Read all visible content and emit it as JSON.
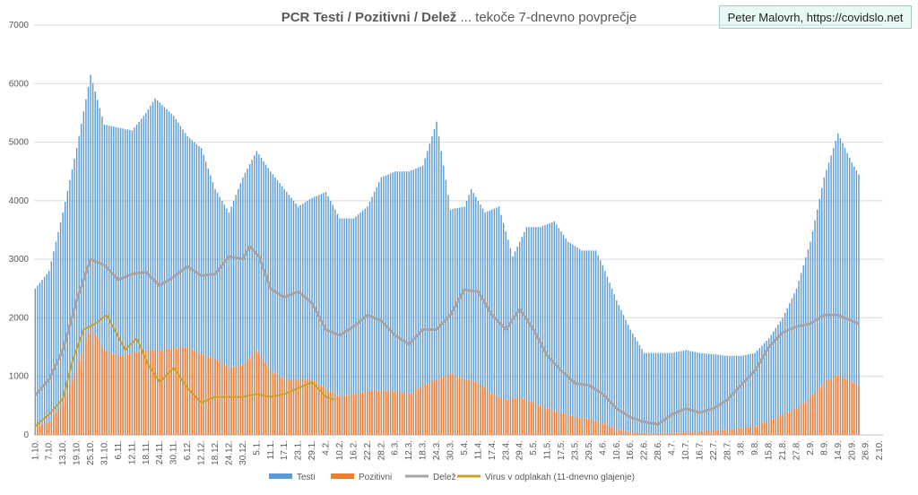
{
  "credit": "Peter Malovrh, https://covidslo.net",
  "colors": {
    "testi": "#5b9bd5",
    "pozitivni": "#ed7d31",
    "delez": "#a5a5a5",
    "virus": "#c9a227",
    "grid": "#d9d9d9",
    "axis_text": "#595959"
  },
  "chart_data": {
    "type": "bar",
    "title_bold": "PCR Testi / Pozitivni / Delež",
    "title_rest": " ... tekoče 7-dnevno povprečje",
    "ylim": [
      0,
      7000
    ],
    "yticks": [
      "0",
      "1000",
      "2000",
      "3000",
      "4000",
      "5000",
      "6000",
      "7000"
    ],
    "legend_position": "bottom",
    "x_start": "2020-10-01",
    "x_end": "2021-10-03",
    "xtick_labels": [
      "1.10.",
      "7.10.",
      "13.10.",
      "19.10.",
      "25.10.",
      "31.10.",
      "6.11.",
      "12.11.",
      "18.11.",
      "24.11.",
      "30.11.",
      "6.12.",
      "12.12.",
      "18.12.",
      "24.12.",
      "30.12.",
      "5.1.",
      "11.1.",
      "17.1.",
      "23.1.",
      "29.1.",
      "4.2.",
      "10.2.",
      "16.2.",
      "22.2.",
      "28.2.",
      "6.3.",
      "12.3.",
      "18.3.",
      "24.3.",
      "30.3.",
      "5.4.",
      "11.4.",
      "17.4.",
      "23.4.",
      "29.4.",
      "5.5.",
      "11.5.",
      "17.5.",
      "23.5.",
      "29.5.",
      "4.6.",
      "10.6.",
      "16.6.",
      "22.6.",
      "28.6.",
      "4.7.",
      "10.7.",
      "16.7.",
      "22.7.",
      "28.7.",
      "3.8.",
      "9.8.",
      "15.8.",
      "21.8.",
      "27.8.",
      "2.9.",
      "8.9.",
      "14.9.",
      "20.9.",
      "26.9.",
      "2.10."
    ],
    "series": [
      {
        "name": "Testi",
        "kind": "bar",
        "points": [
          [
            "2020-10-01",
            2500
          ],
          [
            "2020-10-07",
            2800
          ],
          [
            "2020-10-13",
            3800
          ],
          [
            "2020-10-19",
            4900
          ],
          [
            "2020-10-25",
            6150
          ],
          [
            "2020-10-31",
            5300
          ],
          [
            "2020-11-06",
            5250
          ],
          [
            "2020-11-12",
            5200
          ],
          [
            "2020-11-18",
            5500
          ],
          [
            "2020-11-22",
            5750
          ],
          [
            "2020-11-30",
            5450
          ],
          [
            "2020-12-06",
            5100
          ],
          [
            "2020-12-12",
            4900
          ],
          [
            "2020-12-18",
            4200
          ],
          [
            "2020-12-24",
            3800
          ],
          [
            "2020-12-30",
            4400
          ],
          [
            "2021-01-05",
            4850
          ],
          [
            "2021-01-11",
            4500
          ],
          [
            "2021-01-17",
            4200
          ],
          [
            "2021-01-23",
            3900
          ],
          [
            "2021-01-29",
            4050
          ],
          [
            "2021-02-04",
            4150
          ],
          [
            "2021-02-10",
            3700
          ],
          [
            "2021-02-16",
            3700
          ],
          [
            "2021-02-22",
            3900
          ],
          [
            "2021-02-28",
            4400
          ],
          [
            "2021-03-06",
            4500
          ],
          [
            "2021-03-12",
            4500
          ],
          [
            "2021-03-18",
            4600
          ],
          [
            "2021-03-24",
            5350
          ],
          [
            "2021-03-30",
            3850
          ],
          [
            "2021-04-05",
            3900
          ],
          [
            "2021-04-08",
            4200
          ],
          [
            "2021-04-14",
            3800
          ],
          [
            "2021-04-20",
            3900
          ],
          [
            "2021-04-26",
            3050
          ],
          [
            "2021-05-02",
            3550
          ],
          [
            "2021-05-08",
            3550
          ],
          [
            "2021-05-14",
            3650
          ],
          [
            "2021-05-20",
            3300
          ],
          [
            "2021-05-26",
            3150
          ],
          [
            "2021-06-01",
            3150
          ],
          [
            "2021-06-04",
            2900
          ],
          [
            "2021-06-10",
            2300
          ],
          [
            "2021-06-16",
            1800
          ],
          [
            "2021-06-22",
            1400
          ],
          [
            "2021-06-28",
            1400
          ],
          [
            "2021-07-04",
            1400
          ],
          [
            "2021-07-10",
            1450
          ],
          [
            "2021-07-16",
            1400
          ],
          [
            "2021-07-22",
            1380
          ],
          [
            "2021-07-28",
            1350
          ],
          [
            "2021-08-03",
            1350
          ],
          [
            "2021-08-09",
            1400
          ],
          [
            "2021-08-15",
            1650
          ],
          [
            "2021-08-21",
            2000
          ],
          [
            "2021-08-27",
            2500
          ],
          [
            "2021-09-02",
            3300
          ],
          [
            "2021-09-08",
            4400
          ],
          [
            "2021-09-14",
            5150
          ],
          [
            "2021-09-20",
            4650
          ],
          [
            "2021-09-23",
            4450
          ]
        ]
      },
      {
        "name": "Pozitivni",
        "kind": "bar",
        "points": [
          [
            "2020-10-01",
            140
          ],
          [
            "2020-10-07",
            230
          ],
          [
            "2020-10-13",
            560
          ],
          [
            "2020-10-19",
            1150
          ],
          [
            "2020-10-25",
            1850
          ],
          [
            "2020-10-31",
            1450
          ],
          [
            "2020-11-06",
            1350
          ],
          [
            "2020-11-12",
            1400
          ],
          [
            "2020-11-18",
            1450
          ],
          [
            "2020-11-24",
            1450
          ],
          [
            "2020-11-30",
            1480
          ],
          [
            "2020-12-06",
            1500
          ],
          [
            "2020-12-12",
            1380
          ],
          [
            "2020-12-18",
            1300
          ],
          [
            "2020-12-24",
            1150
          ],
          [
            "2020-12-30",
            1200
          ],
          [
            "2021-01-05",
            1450
          ],
          [
            "2021-01-11",
            1100
          ],
          [
            "2021-01-17",
            950
          ],
          [
            "2021-01-23",
            950
          ],
          [
            "2021-01-29",
            950
          ],
          [
            "2021-02-04",
            800
          ],
          [
            "2021-02-10",
            650
          ],
          [
            "2021-02-16",
            700
          ],
          [
            "2021-02-22",
            750
          ],
          [
            "2021-02-28",
            760
          ],
          [
            "2021-03-06",
            750
          ],
          [
            "2021-03-12",
            700
          ],
          [
            "2021-03-18",
            850
          ],
          [
            "2021-03-24",
            950
          ],
          [
            "2021-03-30",
            1050
          ],
          [
            "2021-04-05",
            950
          ],
          [
            "2021-04-11",
            900
          ],
          [
            "2021-04-17",
            700
          ],
          [
            "2021-04-23",
            600
          ],
          [
            "2021-04-29",
            650
          ],
          [
            "2021-05-05",
            550
          ],
          [
            "2021-05-11",
            450
          ],
          [
            "2021-05-17",
            380
          ],
          [
            "2021-05-23",
            300
          ],
          [
            "2021-05-29",
            280
          ],
          [
            "2021-06-04",
            200
          ],
          [
            "2021-06-10",
            100
          ],
          [
            "2021-06-16",
            50
          ],
          [
            "2021-06-22",
            30
          ],
          [
            "2021-06-28",
            25
          ],
          [
            "2021-07-04",
            30
          ],
          [
            "2021-07-10",
            50
          ],
          [
            "2021-07-16",
            60
          ],
          [
            "2021-07-22",
            70
          ],
          [
            "2021-07-28",
            90
          ],
          [
            "2021-08-03",
            120
          ],
          [
            "2021-08-09",
            150
          ],
          [
            "2021-08-15",
            250
          ],
          [
            "2021-08-21",
            350
          ],
          [
            "2021-08-27",
            450
          ],
          [
            "2021-09-02",
            650
          ],
          [
            "2021-09-08",
            900
          ],
          [
            "2021-09-14",
            1030
          ],
          [
            "2021-09-20",
            900
          ],
          [
            "2021-09-23",
            850
          ]
        ]
      },
      {
        "name": "Delež",
        "kind": "line",
        "points": [
          [
            "2020-10-01",
            680
          ],
          [
            "2020-10-07",
            950
          ],
          [
            "2020-10-13",
            1450
          ],
          [
            "2020-10-19",
            2300
          ],
          [
            "2020-10-25",
            3000
          ],
          [
            "2020-10-31",
            2900
          ],
          [
            "2020-11-06",
            2650
          ],
          [
            "2020-11-12",
            2750
          ],
          [
            "2020-11-18",
            2780
          ],
          [
            "2020-11-24",
            2550
          ],
          [
            "2020-11-30",
            2700
          ],
          [
            "2020-12-06",
            2880
          ],
          [
            "2020-12-12",
            2720
          ],
          [
            "2020-12-18",
            2750
          ],
          [
            "2020-12-24",
            3050
          ],
          [
            "2020-12-30",
            3000
          ],
          [
            "2021-01-02",
            3220
          ],
          [
            "2021-01-06",
            3050
          ],
          [
            "2021-01-11",
            2500
          ],
          [
            "2021-01-17",
            2350
          ],
          [
            "2021-01-23",
            2450
          ],
          [
            "2021-01-29",
            2250
          ],
          [
            "2021-02-04",
            1800
          ],
          [
            "2021-02-10",
            1700
          ],
          [
            "2021-02-16",
            1850
          ],
          [
            "2021-02-22",
            2050
          ],
          [
            "2021-02-28",
            1950
          ],
          [
            "2021-03-06",
            1700
          ],
          [
            "2021-03-12",
            1550
          ],
          [
            "2021-03-18",
            1800
          ],
          [
            "2021-03-24",
            1800
          ],
          [
            "2021-03-30",
            2050
          ],
          [
            "2021-04-05",
            2480
          ],
          [
            "2021-04-11",
            2450
          ],
          [
            "2021-04-17",
            2050
          ],
          [
            "2021-04-23",
            1800
          ],
          [
            "2021-04-29",
            2150
          ],
          [
            "2021-05-05",
            1800
          ],
          [
            "2021-05-11",
            1350
          ],
          [
            "2021-05-17",
            1100
          ],
          [
            "2021-05-23",
            880
          ],
          [
            "2021-05-29",
            850
          ],
          [
            "2021-06-04",
            700
          ],
          [
            "2021-06-10",
            450
          ],
          [
            "2021-06-16",
            300
          ],
          [
            "2021-06-22",
            220
          ],
          [
            "2021-06-28",
            180
          ],
          [
            "2021-07-04",
            350
          ],
          [
            "2021-07-10",
            450
          ],
          [
            "2021-07-16",
            380
          ],
          [
            "2021-07-22",
            450
          ],
          [
            "2021-07-28",
            600
          ],
          [
            "2021-08-03",
            850
          ],
          [
            "2021-08-09",
            1100
          ],
          [
            "2021-08-15",
            1500
          ],
          [
            "2021-08-21",
            1750
          ],
          [
            "2021-08-27",
            1850
          ],
          [
            "2021-09-02",
            1900
          ],
          [
            "2021-09-08",
            2050
          ],
          [
            "2021-09-14",
            2050
          ],
          [
            "2021-09-20",
            1950
          ],
          [
            "2021-09-23",
            1900
          ]
        ]
      },
      {
        "name": "Virus v odplakah (11-dnevno glajenje)",
        "kind": "line",
        "points": [
          [
            "2020-10-01",
            150
          ],
          [
            "2020-10-07",
            350
          ],
          [
            "2020-10-13",
            620
          ],
          [
            "2020-10-17",
            1250
          ],
          [
            "2020-10-22",
            1800
          ],
          [
            "2020-10-27",
            1900
          ],
          [
            "2020-11-01",
            2050
          ],
          [
            "2020-11-05",
            1750
          ],
          [
            "2020-11-09",
            1450
          ],
          [
            "2020-11-14",
            1650
          ],
          [
            "2020-11-19",
            1200
          ],
          [
            "2020-11-24",
            900
          ],
          [
            "2020-11-30",
            1150
          ],
          [
            "2020-12-06",
            800
          ],
          [
            "2020-12-12",
            550
          ],
          [
            "2020-12-18",
            650
          ],
          [
            "2020-12-24",
            650
          ],
          [
            "2020-12-30",
            650
          ],
          [
            "2021-01-05",
            700
          ],
          [
            "2021-01-11",
            650
          ],
          [
            "2021-01-17",
            700
          ],
          [
            "2021-01-23",
            800
          ],
          [
            "2021-01-29",
            900
          ],
          [
            "2021-02-04",
            650
          ],
          [
            "2021-02-08",
            600
          ]
        ]
      }
    ]
  }
}
